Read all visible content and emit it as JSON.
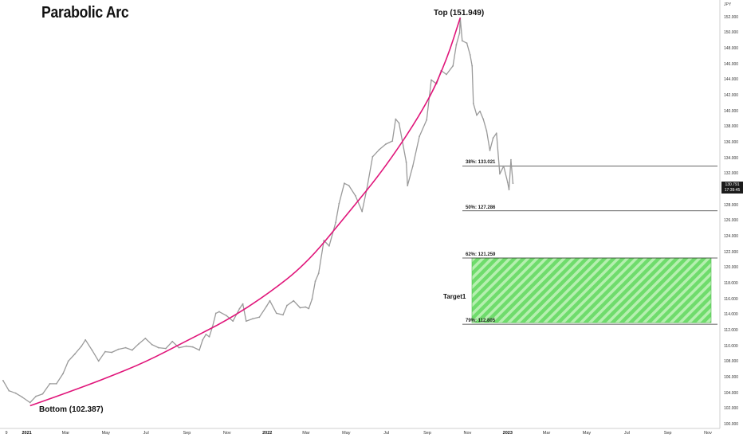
{
  "page": {
    "title": "Parabolic Arc",
    "currency": "JPY",
    "annotations": {
      "top": "Top (151.949)",
      "bottom": "Bottom (102.387)",
      "target": "Target1"
    },
    "price_box": {
      "price": "130.791",
      "countdown": "17:39:45"
    }
  },
  "chart_data": {
    "type": "line",
    "title": "Parabolic Arc",
    "currency": "JPY",
    "y_range": [
      100,
      153.5
    ],
    "y_ticks": [
      "152.000",
      "150.000",
      "148.000",
      "146.000",
      "144.000",
      "142.000",
      "140.000",
      "138.000",
      "136.000",
      "134.000",
      "132.000",
      "130.000",
      "128.000",
      "126.000",
      "124.000",
      "122.000",
      "120.000",
      "118.000",
      "116.000",
      "114.000",
      "112.000",
      "110.000",
      "108.000",
      "106.000",
      "104.000",
      "102.000",
      "100.000"
    ],
    "x_ticks": [
      {
        "date": "2020-12-01",
        "label": "9"
      },
      {
        "date": "2021-01-01",
        "label": "2021",
        "year": true
      },
      {
        "date": "2021-03-01",
        "label": "Mar"
      },
      {
        "date": "2021-05-01",
        "label": "May"
      },
      {
        "date": "2021-07-01",
        "label": "Jul"
      },
      {
        "date": "2021-09-01",
        "label": "Sep"
      },
      {
        "date": "2021-11-01",
        "label": "Nov"
      },
      {
        "date": "2022-01-01",
        "label": "2022",
        "year": true
      },
      {
        "date": "2022-03-01",
        "label": "Mar"
      },
      {
        "date": "2022-05-01",
        "label": "May"
      },
      {
        "date": "2022-07-01",
        "label": "Jul"
      },
      {
        "date": "2022-09-01",
        "label": "Sep"
      },
      {
        "date": "2022-11-01",
        "label": "Nov"
      },
      {
        "date": "2023-01-01",
        "label": "2023",
        "year": true
      },
      {
        "date": "2023-03-01",
        "label": "Mar"
      },
      {
        "date": "2023-05-01",
        "label": "May"
      },
      {
        "date": "2023-07-01",
        "label": "Jul"
      },
      {
        "date": "2023-09-01",
        "label": "Sep"
      },
      {
        "date": "2023-11-01",
        "label": "Nov"
      }
    ],
    "series": [
      {
        "color": "#9a9a9a",
        "points": [
          [
            "2020-11-26",
            105.6
          ],
          [
            "2020-12-05",
            104.3
          ],
          [
            "2020-12-15",
            104.0
          ],
          [
            "2020-12-25",
            103.5
          ],
          [
            "2021-01-06",
            102.8
          ],
          [
            "2021-01-15",
            103.6
          ],
          [
            "2021-01-25",
            103.9
          ],
          [
            "2021-02-05",
            105.2
          ],
          [
            "2021-02-15",
            105.2
          ],
          [
            "2021-02-25",
            106.5
          ],
          [
            "2021-03-05",
            108.1
          ],
          [
            "2021-03-15",
            109.0
          ],
          [
            "2021-03-25",
            110.0
          ],
          [
            "2021-03-31",
            110.8
          ],
          [
            "2021-04-10",
            109.5
          ],
          [
            "2021-04-20",
            108.1
          ],
          [
            "2021-04-30",
            109.3
          ],
          [
            "2021-05-10",
            109.2
          ],
          [
            "2021-05-20",
            109.6
          ],
          [
            "2021-05-31",
            109.8
          ],
          [
            "2021-06-10",
            109.5
          ],
          [
            "2021-06-20",
            110.3
          ],
          [
            "2021-06-30",
            111.0
          ],
          [
            "2021-07-10",
            110.2
          ],
          [
            "2021-07-20",
            109.8
          ],
          [
            "2021-07-31",
            109.7
          ],
          [
            "2021-08-10",
            110.6
          ],
          [
            "2021-08-20",
            109.8
          ],
          [
            "2021-08-31",
            110.0
          ],
          [
            "2021-09-10",
            109.9
          ],
          [
            "2021-09-20",
            109.5
          ],
          [
            "2021-09-25",
            110.8
          ],
          [
            "2021-09-30",
            111.5
          ],
          [
            "2021-10-05",
            111.2
          ],
          [
            "2021-10-10",
            112.5
          ],
          [
            "2021-10-15",
            114.2
          ],
          [
            "2021-10-20",
            114.4
          ],
          [
            "2021-10-31",
            113.9
          ],
          [
            "2021-11-10",
            113.2
          ],
          [
            "2021-11-20",
            114.8
          ],
          [
            "2021-11-25",
            115.4
          ],
          [
            "2021-11-30",
            113.2
          ],
          [
            "2021-12-10",
            113.5
          ],
          [
            "2021-12-20",
            113.7
          ],
          [
            "2021-12-31",
            115.1
          ],
          [
            "2022-01-05",
            115.8
          ],
          [
            "2022-01-15",
            114.2
          ],
          [
            "2022-01-25",
            114.0
          ],
          [
            "2022-01-31",
            115.2
          ],
          [
            "2022-02-10",
            115.8
          ],
          [
            "2022-02-20",
            114.9
          ],
          [
            "2022-02-28",
            115.0
          ],
          [
            "2022-03-05",
            114.8
          ],
          [
            "2022-03-10",
            116.0
          ],
          [
            "2022-03-15",
            118.3
          ],
          [
            "2022-03-20",
            119.3
          ],
          [
            "2022-03-28",
            123.5
          ],
          [
            "2022-04-05",
            122.8
          ],
          [
            "2022-04-15",
            125.8
          ],
          [
            "2022-04-20",
            128.2
          ],
          [
            "2022-04-28",
            130.8
          ],
          [
            "2022-05-05",
            130.5
          ],
          [
            "2022-05-15",
            129.2
          ],
          [
            "2022-05-25",
            127.2
          ],
          [
            "2022-06-01",
            130.0
          ],
          [
            "2022-06-10",
            134.2
          ],
          [
            "2022-06-20",
            135.1
          ],
          [
            "2022-06-30",
            135.8
          ],
          [
            "2022-07-10",
            136.2
          ],
          [
            "2022-07-15",
            139.0
          ],
          [
            "2022-07-20",
            138.5
          ],
          [
            "2022-07-31",
            133.5
          ],
          [
            "2022-08-02",
            130.5
          ],
          [
            "2022-08-10",
            133.0
          ],
          [
            "2022-08-20",
            136.8
          ],
          [
            "2022-08-31",
            138.9
          ],
          [
            "2022-09-07",
            144.0
          ],
          [
            "2022-09-15",
            143.5
          ],
          [
            "2022-09-22",
            145.2
          ],
          [
            "2022-09-30",
            144.7
          ],
          [
            "2022-10-10",
            145.8
          ],
          [
            "2022-10-15",
            148.5
          ],
          [
            "2022-10-20",
            150.0
          ],
          [
            "2022-10-21",
            151.9
          ],
          [
            "2022-10-24",
            149.0
          ],
          [
            "2022-10-31",
            148.7
          ],
          [
            "2022-11-05",
            147.2
          ],
          [
            "2022-11-08",
            145.8
          ],
          [
            "2022-11-10",
            141.0
          ],
          [
            "2022-11-15",
            139.5
          ],
          [
            "2022-11-20",
            140.0
          ],
          [
            "2022-11-25",
            139.0
          ],
          [
            "2022-11-30",
            137.5
          ],
          [
            "2022-12-05",
            135.0
          ],
          [
            "2022-12-10",
            136.6
          ],
          [
            "2022-12-15",
            137.2
          ],
          [
            "2022-12-20",
            132.0
          ],
          [
            "2022-12-26",
            133.0
          ],
          [
            "2023-01-01",
            130.9
          ],
          [
            "2023-01-03",
            130.0
          ],
          [
            "2023-01-06",
            133.8
          ],
          [
            "2023-01-09",
            130.8
          ]
        ]
      },
      {
        "color": "#e0157a",
        "points": [
          [
            "2021-01-06",
            102.387
          ],
          [
            "2021-03-01",
            104.0
          ],
          [
            "2021-05-01",
            105.9
          ],
          [
            "2021-07-01",
            108.0
          ],
          [
            "2021-09-01",
            110.7
          ],
          [
            "2021-11-01",
            113.3
          ],
          [
            "2022-01-01",
            116.6
          ],
          [
            "2022-03-01",
            120.5
          ],
          [
            "2022-05-01",
            126.7
          ],
          [
            "2022-07-01",
            133.0
          ],
          [
            "2022-09-01",
            141.0
          ],
          [
            "2022-10-01",
            146.7
          ],
          [
            "2022-10-21",
            151.949
          ]
        ]
      }
    ],
    "fib_levels": [
      {
        "label": "38%: 133.021",
        "value": 133.021
      },
      {
        "label": "50%: 127.286",
        "value": 127.286
      },
      {
        "label": "62%: 121.259",
        "value": 121.259
      },
      {
        "label": "79%: 112.805",
        "value": 112.805
      }
    ],
    "target_zone": {
      "label": "Target1",
      "from": 113.0,
      "to": 121.259,
      "color": "#7de07a"
    },
    "y_scale": "linear",
    "grid": false,
    "legend": "none"
  }
}
